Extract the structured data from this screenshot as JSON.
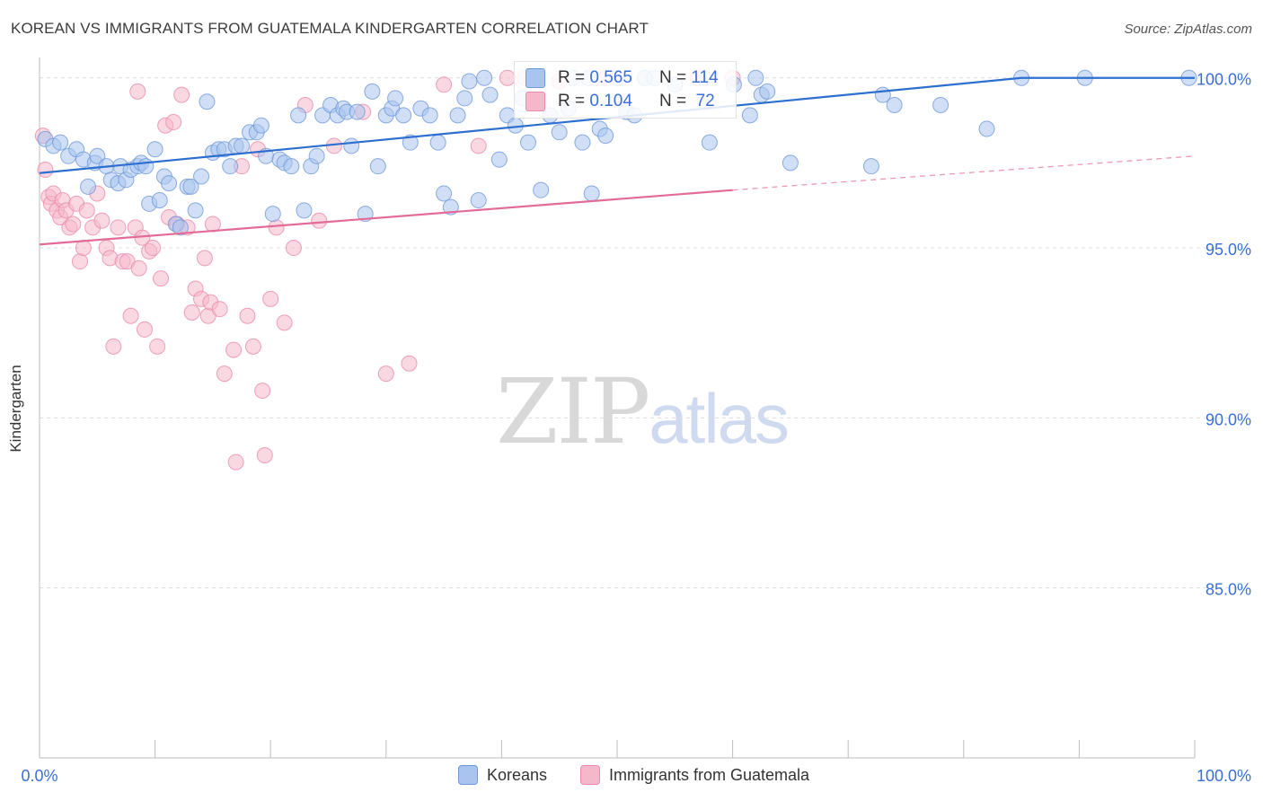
{
  "title": "KOREAN VS IMMIGRANTS FROM GUATEMALA KINDERGARTEN CORRELATION CHART",
  "source": "Source: ZipAtlas.com",
  "watermark": {
    "zip": "ZIP",
    "atlas": "atlas"
  },
  "legend_top": {
    "rows": [
      {
        "r_label": "R = ",
        "r_value": "0.565",
        "n_label": "N = ",
        "n_value": "114"
      },
      {
        "r_label": "R = ",
        "r_value": "0.104",
        "n_label": "N = ",
        "n_value": " 72"
      }
    ]
  },
  "colors": {
    "blue_fill": "#a9c4ee",
    "blue_stroke": "#6f98d8",
    "blue_line": "#2d6fcf",
    "pink_fill": "#f5b8cb",
    "pink_stroke": "#e98aaa",
    "pink_line": "#e26b97",
    "axis_text": "#3a6fd8",
    "grid": "#dddddd"
  },
  "chart_data": {
    "type": "scatter",
    "title": "KOREAN VS IMMIGRANTS FROM GUATEMALA KINDERGARTEN CORRELATION CHART",
    "xlabel": "",
    "ylabel": "Kindergarten",
    "xlim": [
      0,
      100
    ],
    "ylim": [
      80,
      100.6
    ],
    "x_tick_labels": [
      "0.0%",
      "100.0%"
    ],
    "y_ticks": [
      100,
      95,
      90,
      85
    ],
    "y_tick_labels": [
      "100.0%",
      "95.0%",
      "90.0%",
      "85.0%"
    ],
    "grid": true,
    "legend_position": "bottom",
    "series": [
      {
        "name": "Koreans",
        "color": "#a9c4ee",
        "trend": {
          "x": [
            0,
            85
          ],
          "y": [
            97.2,
            100
          ],
          "dashed_to": null
        },
        "points": [
          [
            0.5,
            98.2
          ],
          [
            1.2,
            98.0
          ],
          [
            1.8,
            98.1
          ],
          [
            2.5,
            97.7
          ],
          [
            3.2,
            97.9
          ],
          [
            3.8,
            97.6
          ],
          [
            4.2,
            96.8
          ],
          [
            4.8,
            97.5
          ],
          [
            5.0,
            97.7
          ],
          [
            5.8,
            97.4
          ],
          [
            6.2,
            97.0
          ],
          [
            6.8,
            96.9
          ],
          [
            7.0,
            97.4
          ],
          [
            7.5,
            97.0
          ],
          [
            7.9,
            97.3
          ],
          [
            8.5,
            97.4
          ],
          [
            8.8,
            97.5
          ],
          [
            9.2,
            97.4
          ],
          [
            9.5,
            96.3
          ],
          [
            10.0,
            97.9
          ],
          [
            10.4,
            96.4
          ],
          [
            10.8,
            97.1
          ],
          [
            11.2,
            96.9
          ],
          [
            11.8,
            95.7
          ],
          [
            12.2,
            95.6
          ],
          [
            12.8,
            96.8
          ],
          [
            13.1,
            96.8
          ],
          [
            13.5,
            96.1
          ],
          [
            14.0,
            97.1
          ],
          [
            14.5,
            99.3
          ],
          [
            15.0,
            97.8
          ],
          [
            15.5,
            97.9
          ],
          [
            16.0,
            97.9
          ],
          [
            16.5,
            97.4
          ],
          [
            17.0,
            98.0
          ],
          [
            17.5,
            98.0
          ],
          [
            18.2,
            98.4
          ],
          [
            18.8,
            98.4
          ],
          [
            19.2,
            98.6
          ],
          [
            19.6,
            97.7
          ],
          [
            20.2,
            96.0
          ],
          [
            20.8,
            97.6
          ],
          [
            21.2,
            97.5
          ],
          [
            21.8,
            97.4
          ],
          [
            22.4,
            98.9
          ],
          [
            22.9,
            96.1
          ],
          [
            23.5,
            97.4
          ],
          [
            24.0,
            97.7
          ],
          [
            24.5,
            98.9
          ],
          [
            25.2,
            99.2
          ],
          [
            25.8,
            98.9
          ],
          [
            26.3,
            99.1
          ],
          [
            26.6,
            99.0
          ],
          [
            27.0,
            98.0
          ],
          [
            27.5,
            99.0
          ],
          [
            28.2,
            96.0
          ],
          [
            28.8,
            99.6
          ],
          [
            29.3,
            97.4
          ],
          [
            30.0,
            98.9
          ],
          [
            30.5,
            99.1
          ],
          [
            30.8,
            99.4
          ],
          [
            31.5,
            98.9
          ],
          [
            32.1,
            98.1
          ],
          [
            33.0,
            99.1
          ],
          [
            33.8,
            98.9
          ],
          [
            34.5,
            98.1
          ],
          [
            35.0,
            96.6
          ],
          [
            35.6,
            96.2
          ],
          [
            36.2,
            98.9
          ],
          [
            36.8,
            99.4
          ],
          [
            37.2,
            99.9
          ],
          [
            38.0,
            96.4
          ],
          [
            38.5,
            100
          ],
          [
            39.0,
            99.5
          ],
          [
            39.8,
            97.6
          ],
          [
            40.5,
            98.9
          ],
          [
            41.2,
            98.6
          ],
          [
            41.8,
            99.4
          ],
          [
            42.3,
            98.1
          ],
          [
            43.0,
            100
          ],
          [
            43.4,
            96.7
          ],
          [
            44.2,
            98.9
          ],
          [
            45.0,
            98.4
          ],
          [
            45.8,
            99.1
          ],
          [
            46.2,
            100
          ],
          [
            47.0,
            98.1
          ],
          [
            47.5,
            100
          ],
          [
            47.8,
            96.6
          ],
          [
            48.5,
            98.5
          ],
          [
            49.0,
            98.3
          ],
          [
            50.0,
            100
          ],
          [
            50.8,
            99.0
          ],
          [
            51.5,
            98.9
          ],
          [
            52.4,
            100
          ],
          [
            53.2,
            100
          ],
          [
            55.0,
            99.8
          ],
          [
            57.5,
            100
          ],
          [
            58.0,
            98.1
          ],
          [
            60.1,
            99.8
          ],
          [
            61.5,
            98.9
          ],
          [
            62.0,
            100
          ],
          [
            62.5,
            99.5
          ],
          [
            63.0,
            99.6
          ],
          [
            65.0,
            97.5
          ],
          [
            72.0,
            97.4
          ],
          [
            73.0,
            99.5
          ],
          [
            74.0,
            99.2
          ],
          [
            78.0,
            99.2
          ],
          [
            82.0,
            98.5
          ],
          [
            85.0,
            100
          ],
          [
            90.5,
            100
          ],
          [
            99.5,
            100
          ]
        ]
      },
      {
        "name": "Immigrants from Guatemala",
        "color": "#f5b8cb",
        "trend": {
          "x": [
            0,
            60
          ],
          "y": [
            95.1,
            96.7
          ],
          "dashed_to": [
            100,
            97.7
          ]
        },
        "points": [
          [
            0.3,
            98.3
          ],
          [
            0.5,
            97.3
          ],
          [
            0.8,
            96.5
          ],
          [
            1.0,
            96.3
          ],
          [
            1.2,
            96.6
          ],
          [
            1.5,
            96.1
          ],
          [
            1.8,
            95.9
          ],
          [
            2.0,
            96.4
          ],
          [
            2.3,
            96.1
          ],
          [
            2.6,
            95.6
          ],
          [
            2.9,
            95.7
          ],
          [
            3.2,
            96.3
          ],
          [
            3.5,
            94.6
          ],
          [
            3.8,
            95.0
          ],
          [
            4.1,
            96.1
          ],
          [
            4.6,
            95.6
          ],
          [
            5.0,
            96.6
          ],
          [
            5.4,
            95.8
          ],
          [
            5.8,
            95.0
          ],
          [
            6.1,
            94.7
          ],
          [
            6.4,
            92.1
          ],
          [
            6.8,
            95.6
          ],
          [
            7.2,
            94.6
          ],
          [
            7.6,
            94.6
          ],
          [
            7.9,
            93.0
          ],
          [
            8.3,
            95.6
          ],
          [
            8.6,
            94.4
          ],
          [
            8.9,
            95.3
          ],
          [
            9.1,
            92.6
          ],
          [
            9.5,
            94.9
          ],
          [
            9.8,
            95.0
          ],
          [
            10.2,
            92.1
          ],
          [
            10.5,
            94.1
          ],
          [
            10.9,
            98.6
          ],
          [
            11.2,
            95.9
          ],
          [
            11.6,
            98.7
          ],
          [
            11.9,
            95.7
          ],
          [
            12.3,
            99.5
          ],
          [
            12.8,
            95.6
          ],
          [
            13.2,
            93.1
          ],
          [
            13.5,
            93.8
          ],
          [
            14.0,
            93.5
          ],
          [
            14.3,
            94.7
          ],
          [
            14.6,
            93.0
          ],
          [
            14.8,
            93.4
          ],
          [
            15.0,
            95.7
          ],
          [
            15.6,
            93.2
          ],
          [
            16.0,
            91.3
          ],
          [
            16.8,
            92.0
          ],
          [
            17.5,
            97.4
          ],
          [
            18.0,
            93.0
          ],
          [
            18.5,
            92.1
          ],
          [
            18.9,
            97.9
          ],
          [
            19.3,
            90.8
          ],
          [
            20.0,
            93.5
          ],
          [
            20.5,
            95.6
          ],
          [
            21.2,
            92.8
          ],
          [
            22.0,
            95.0
          ],
          [
            23.0,
            99.2
          ],
          [
            24.2,
            95.8
          ],
          [
            25.5,
            98.0
          ],
          [
            28.0,
            99.0
          ],
          [
            30.0,
            91.3
          ],
          [
            32.0,
            91.6
          ],
          [
            35.0,
            99.8
          ],
          [
            38.0,
            98.0
          ],
          [
            40.5,
            100
          ],
          [
            42.0,
            100
          ],
          [
            45.0,
            99.9
          ],
          [
            49.0,
            100
          ],
          [
            57.0,
            100
          ],
          [
            60.0,
            100
          ],
          [
            8.5,
            99.6
          ],
          [
            17.0,
            88.7
          ],
          [
            19.5,
            88.9
          ]
        ]
      }
    ]
  },
  "legend_bottom": {
    "items": [
      "Koreans",
      "Immigrants from Guatemala"
    ]
  }
}
